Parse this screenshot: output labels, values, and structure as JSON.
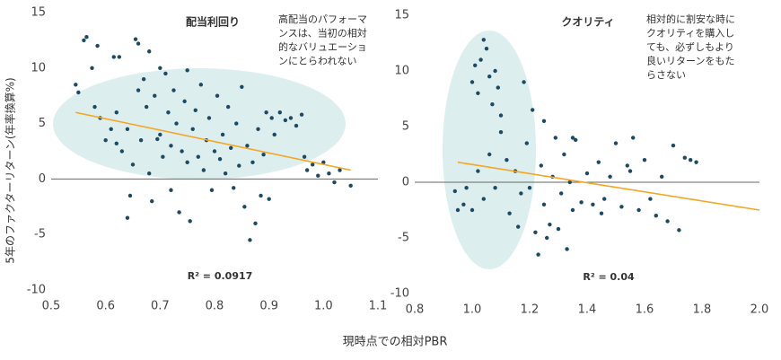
{
  "shared": {
    "xlabel": "現時点での相対PBR",
    "ylabel": "5年のファクターリターン(年率換算%)"
  },
  "chart_data": [
    {
      "type": "scatter",
      "title": "配当利回り",
      "annotation": [
        "高配当のパフォーマ",
        "ンスは、当初の相対",
        "的なバリュエーショ",
        "ンにとらわれない"
      ],
      "r2_label": "R² = 0.0917",
      "xlim": [
        0.5,
        1.1
      ],
      "xticks": [
        0.5,
        0.6,
        0.7,
        0.8,
        0.9,
        {
          "value": 1,
          "label": "1.0"
        },
        1.1
      ],
      "ylim": [
        -10,
        15
      ],
      "yticks": [
        -10,
        -5,
        0,
        5,
        10,
        15
      ],
      "zero_line": true,
      "series": [
        {
          "color": "#1d4a63",
          "x": [
            0.545,
            0.55,
            0.56,
            0.565,
            0.575,
            0.58,
            0.585,
            0.59,
            0.6,
            0.61,
            0.615,
            0.62,
            0.62,
            0.625,
            0.63,
            0.64,
            0.64,
            0.645,
            0.65,
            0.655,
            0.66,
            0.66,
            0.665,
            0.67,
            0.675,
            0.68,
            0.68,
            0.685,
            0.69,
            0.695,
            0.7,
            0.7,
            0.705,
            0.71,
            0.715,
            0.72,
            0.72,
            0.725,
            0.73,
            0.735,
            0.74,
            0.745,
            0.75,
            0.75,
            0.755,
            0.76,
            0.765,
            0.77,
            0.775,
            0.78,
            0.785,
            0.79,
            0.795,
            0.8,
            0.805,
            0.81,
            0.815,
            0.82,
            0.825,
            0.83,
            0.835,
            0.84,
            0.845,
            0.85,
            0.855,
            0.86,
            0.865,
            0.87,
            0.875,
            0.88,
            0.885,
            0.89,
            0.895,
            0.9,
            0.905,
            0.91,
            0.92,
            0.93,
            0.94,
            0.95,
            0.96,
            0.965,
            0.97,
            0.98,
            0.99,
            1.0,
            1.01,
            1.02,
            1.03,
            1.05
          ],
          "y": [
            8.5,
            7.8,
            12.5,
            12.8,
            10,
            6.5,
            12,
            5.5,
            3.5,
            4.5,
            11,
            6,
            3.2,
            11,
            2.5,
            4.5,
            -3.5,
            -1.5,
            1.3,
            12.6,
            12.2,
            8,
            3.5,
            9,
            6.5,
            11.5,
            0.5,
            -2,
            7.5,
            3.6,
            10,
            4,
            2,
            9.5,
            6,
            3,
            -1,
            8,
            5,
            -3,
            2.5,
            7,
            9.8,
            1.5,
            -3.8,
            4.5,
            6.2,
            2,
            8.5,
            0.8,
            3.5,
            5.5,
            -1,
            2.5,
            7.5,
            1.8,
            4,
            0.5,
            6.5,
            2.8,
            -0.8,
            5,
            1.2,
            8.3,
            -2.5,
            3,
            -5.5,
            1.5,
            -4,
            4.5,
            -1.5,
            2.2,
            6,
            -1.8,
            5.5,
            4,
            6,
            5.3,
            5.5,
            4.8,
            5.8,
            2,
            0.8,
            1.3,
            0.3,
            1.5,
            0.5,
            -0.3,
            0.8,
            -0.6
          ]
        }
      ],
      "trend": {
        "color": "#f5a623",
        "x": [
          0.545,
          1.05
        ],
        "y": [
          6,
          0.8
        ]
      }
    },
    {
      "type": "scatter",
      "title": "クオリティ",
      "annotation": [
        "相対的に割安な時に",
        "クオリティを購入し",
        "ても、必ずしもより",
        "良いリターンをもた",
        "らさない"
      ],
      "r2_label": "R² = 0.04",
      "xlim": [
        0.8,
        2.0
      ],
      "xticks": [
        0.8,
        {
          "value": 1,
          "label": "1.0"
        },
        1.2,
        1.4,
        1.6,
        1.8,
        {
          "value": 2,
          "label": "2.0"
        }
      ],
      "ylim": [
        -10,
        15
      ],
      "yticks": [
        -10,
        -5,
        0,
        5,
        10,
        15
      ],
      "zero_line": true,
      "series": [
        {
          "color": "#1d4a63",
          "x": [
            0.94,
            0.95,
            0.97,
            0.98,
            1.0,
            1.01,
            1.02,
            1.03,
            1.04,
            1.05,
            1.06,
            1.07,
            1.08,
            1.09,
            1.1,
            1.0,
            1.02,
            1.04,
            1.06,
            1.08,
            1.1,
            1.12,
            1.13,
            1.15,
            1.16,
            1.17,
            1.18,
            1.19,
            1.2,
            1.21,
            1.22,
            1.23,
            1.24,
            1.25,
            1.26,
            1.27,
            1.28,
            1.29,
            1.3,
            1.31,
            1.32,
            1.33,
            1.34,
            1.35,
            1.36,
            1.38,
            1.4,
            1.42,
            1.44,
            1.46,
            1.48,
            1.5,
            1.52,
            1.54,
            1.56,
            1.58,
            1.6,
            1.62,
            1.64,
            1.66,
            1.68,
            1.7,
            1.72,
            1.74,
            1.76,
            1.78,
            1.55,
            1.45,
            1.35,
            1.25
          ],
          "y": [
            -0.8,
            -2.5,
            -2,
            -0.5,
            9,
            10.5,
            8,
            11,
            12.8,
            12,
            9.5,
            7,
            10,
            8.5,
            6,
            -2.5,
            1,
            -1.5,
            2.5,
            -0.5,
            4.5,
            2,
            -2.8,
            1,
            -4,
            -1,
            9,
            3.5,
            -0.5,
            6.5,
            -4.5,
            -6.5,
            1.5,
            -2,
            -5,
            -3.8,
            0.5,
            4,
            -4.2,
            -1,
            2.5,
            -6,
            0,
            -2.5,
            3.8,
            -1.8,
            0.8,
            -2,
            1.8,
            -1.5,
            0.5,
            3.5,
            -2.2,
            1.5,
            4,
            -2.5,
            2,
            -1.5,
            -3,
            0.5,
            -3.5,
            3.3,
            -4.3,
            2.2,
            2,
            1.8,
            1,
            -2.8,
            4,
            5.5
          ]
        }
      ],
      "trend": {
        "color": "#f5a623",
        "x": [
          0.95,
          2.0
        ],
        "y": [
          1.8,
          -2.5
        ]
      }
    }
  ]
}
